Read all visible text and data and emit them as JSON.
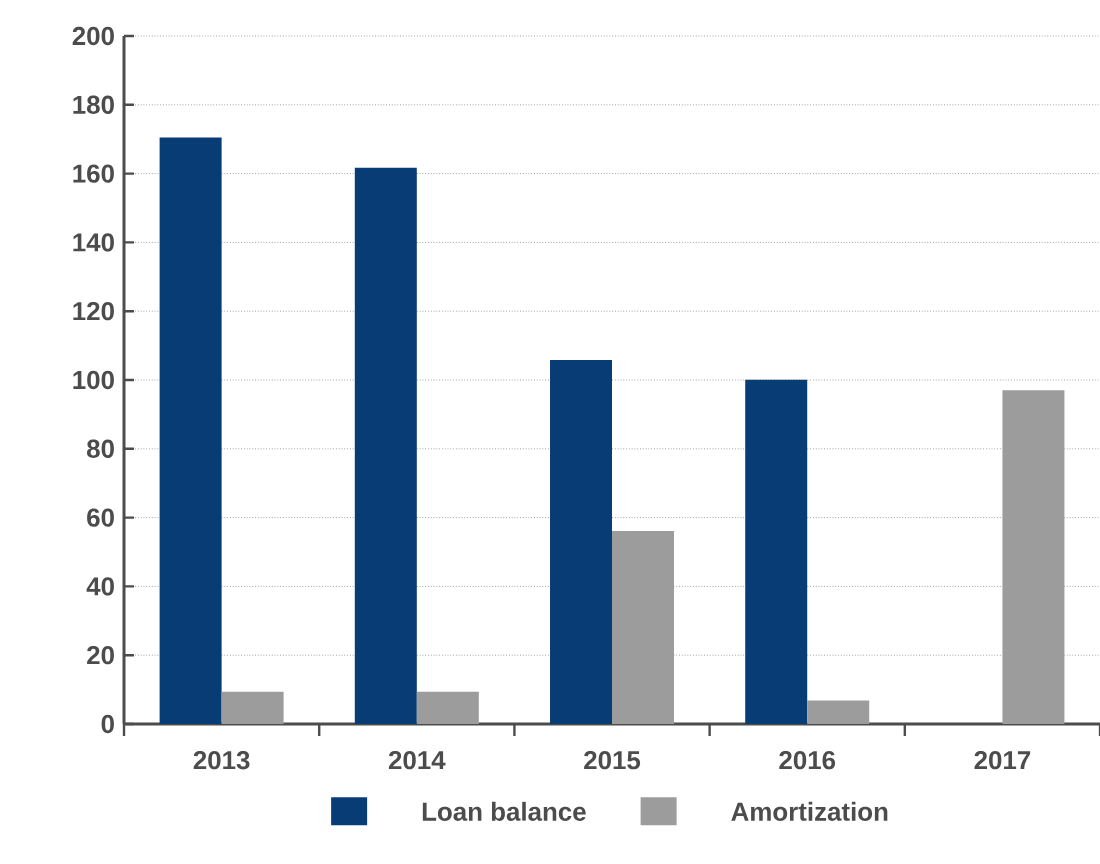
{
  "chart_data": {
    "type": "bar",
    "categories": [
      "2013",
      "2014",
      "2015",
      "2016",
      "2017"
    ],
    "series": [
      {
        "name": "Loan balance",
        "color": "#083c74",
        "values": [
          170.5,
          161.7,
          105.8,
          100.1,
          null
        ]
      },
      {
        "name": "Amortization",
        "color": "#9c9c9c",
        "values": [
          9.4,
          9.4,
          56.1,
          6.8,
          97.0
        ]
      }
    ],
    "ylim": [
      0,
      200
    ],
    "yticks": [
      0,
      20,
      40,
      60,
      80,
      100,
      120,
      140,
      160,
      180,
      200
    ],
    "grid": "y",
    "legend": "bottom"
  }
}
